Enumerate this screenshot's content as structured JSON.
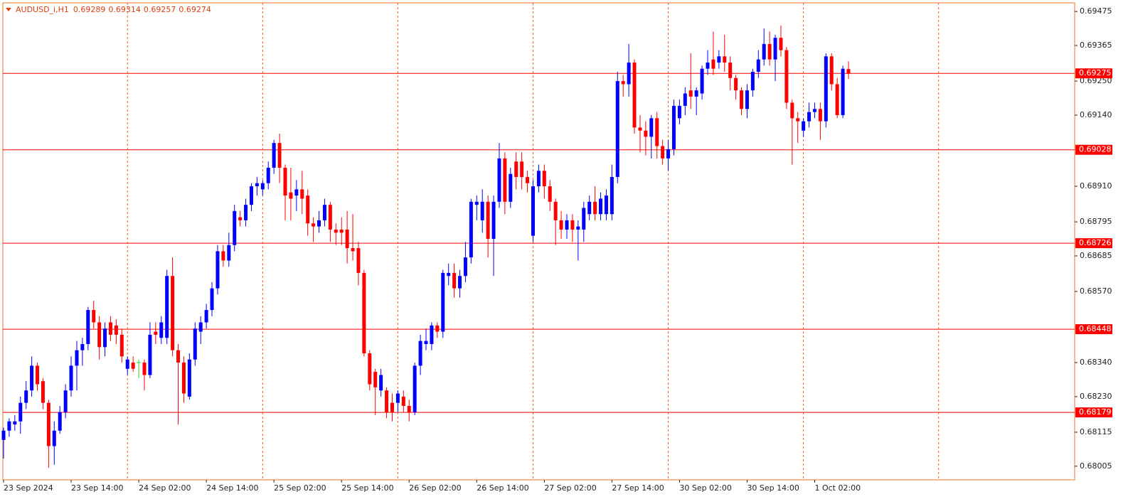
{
  "chart_data": {
    "type": "candlestick",
    "title": "AUDUSD_i,H1",
    "categories": [
      "23 Sep 2024",
      null,
      null,
      null,
      null,
      null,
      null,
      null,
      null,
      null,
      null,
      null,
      "23 Sep 14:00",
      null,
      null,
      null,
      null,
      null,
      null,
      null,
      null,
      null,
      null,
      null,
      "24 Sep 02:00",
      null,
      null,
      null,
      null,
      null,
      null,
      null,
      null,
      null,
      null,
      null,
      "24 Sep 14:00",
      null,
      null,
      null,
      null,
      null,
      null,
      null,
      null,
      null,
      null,
      null,
      "25 Sep 02:00",
      null,
      null,
      null,
      null,
      null,
      null,
      null,
      null,
      null,
      null,
      null,
      "25 Sep 14:00",
      null,
      null,
      null,
      null,
      null,
      null,
      null,
      null,
      null,
      null,
      null,
      "26 Sep 02:00",
      null,
      null,
      null,
      null,
      null,
      null,
      null,
      null,
      null,
      null,
      null,
      "26 Sep 14:00",
      null,
      null,
      null,
      null,
      null,
      null,
      null,
      null,
      null,
      null,
      null,
      "27 Sep 02:00",
      null,
      null,
      null,
      null,
      null,
      null,
      null,
      null,
      null,
      null,
      null,
      "27 Sep 14:00",
      null,
      null,
      null,
      null,
      null,
      null,
      null,
      null,
      null,
      null,
      null,
      "30 Sep 02:00",
      null,
      null,
      null,
      null,
      null,
      null,
      null,
      null,
      null,
      null,
      null,
      "30 Sep 14:00",
      null,
      null,
      null,
      null,
      null,
      null,
      null,
      null,
      null,
      null,
      null,
      "1 Oct 02:00",
      null,
      null,
      null,
      null,
      null,
      null
    ],
    "open": [
      0.6809,
      0.6812,
      0.6814,
      0.6815,
      0.6821,
      0.6825,
      0.6833,
      0.6828,
      0.6821,
      0.6807,
      0.6812,
      0.6818,
      0.6825,
      0.6833,
      0.6838,
      0.684,
      0.6851,
      0.6847,
      0.6839,
      0.6847,
      0.6846,
      0.6843,
      0.6832,
      0.6834,
      0.6834,
      0.6834,
      0.683,
      0.6844,
      0.6842,
      0.6842,
      0.6862,
      0.6838,
      0.6834,
      0.6823,
      0.6835,
      0.6844,
      0.6847,
      0.6851,
      0.6858,
      0.687,
      0.6867,
      0.6872,
      0.6881,
      0.688,
      0.6885,
      0.6891,
      0.689,
      0.6892,
      0.6897,
      0.6905,
      0.6897,
      0.6889,
      0.6888,
      0.689,
      0.6888,
      0.6879,
      0.6878,
      0.688,
      0.6885,
      0.6877,
      0.6877,
      0.6877,
      0.6871,
      0.6871,
      0.6863,
      0.6837,
      0.6831,
      0.6825,
      0.6825,
      0.6821,
      0.6821,
      0.6823,
      0.682,
      0.6818,
      0.6833,
      0.684,
      0.684,
      0.6846,
      0.6844,
      0.6862,
      0.6863,
      0.6858,
      0.6862,
      0.6868,
      0.6885,
      0.688,
      0.6886,
      0.6874,
      0.6886,
      0.69,
      0.6886,
      0.6899,
      0.6899,
      0.6894,
      0.6875,
      0.6891,
      0.6896,
      0.6891,
      0.6886,
      0.688,
      0.6877,
      0.688,
      0.6877,
      0.6877,
      0.6882,
      0.6886,
      0.6882,
      0.6882,
      0.6882,
      0.6894,
      0.6925,
      0.6924,
      0.6931,
      0.691,
      0.6909,
      0.6907,
      0.6913,
      0.6904,
      0.69,
      0.6903,
      0.6913,
      0.6917,
      0.6922,
      0.692,
      0.6921,
      0.6929,
      0.6932,
      0.6931,
      0.6933,
      0.6931,
      0.6926,
      0.6922,
      0.6916,
      0.6922,
      0.6928,
      0.6932,
      0.6937,
      0.6932,
      0.6939,
      0.6935,
      0.6918,
      0.6913,
      0.6909,
      0.6912,
      0.6915,
      0.6916,
      0.6912,
      0.6933,
      0.6924,
      0.6914,
      0.69289
    ],
    "high": [
      0.6813,
      0.6816,
      0.6817,
      0.6823,
      0.6828,
      0.6836,
      0.6834,
      0.6829,
      0.6822,
      0.6815,
      0.682,
      0.6827,
      0.6836,
      0.6841,
      0.6842,
      0.6852,
      0.6854,
      0.6849,
      0.6847,
      0.6849,
      0.6848,
      0.6845,
      0.6836,
      0.6836,
      0.6835,
      0.6835,
      0.6847,
      0.6847,
      0.6849,
      0.6864,
      0.6868,
      0.684,
      0.6836,
      0.6837,
      0.6847,
      0.6849,
      0.6853,
      0.686,
      0.6872,
      0.6872,
      0.6876,
      0.6885,
      0.6883,
      0.6887,
      0.6892,
      0.6894,
      0.6893,
      0.6899,
      0.6906,
      0.6908,
      0.6898,
      0.6897,
      0.6893,
      0.6896,
      0.689,
      0.6881,
      0.6883,
      0.6887,
      0.6886,
      0.6879,
      0.6881,
      0.6883,
      0.6882,
      0.6873,
      0.6864,
      0.6838,
      0.6832,
      0.6832,
      0.6826,
      0.6824,
      0.6825,
      0.6825,
      0.6822,
      0.6834,
      0.6843,
      0.6845,
      0.6847,
      0.6847,
      0.6864,
      0.6866,
      0.6866,
      0.6864,
      0.6873,
      0.6887,
      0.6888,
      0.689,
      0.6888,
      0.6888,
      0.6905,
      0.6902,
      0.6897,
      0.6902,
      0.6902,
      0.6896,
      0.6893,
      0.6898,
      0.6898,
      0.6893,
      0.6887,
      0.6883,
      0.6882,
      0.6882,
      0.688,
      0.6886,
      0.6888,
      0.6891,
      0.6889,
      0.689,
      0.6898,
      0.6928,
      0.6927,
      0.6937,
      0.6932,
      0.6914,
      0.6912,
      0.6914,
      0.6915,
      0.6906,
      0.6906,
      0.6919,
      0.6919,
      0.6923,
      0.6934,
      0.6923,
      0.693,
      0.6935,
      0.6941,
      0.6935,
      0.694,
      0.6933,
      0.6927,
      0.6923,
      0.6924,
      0.6929,
      0.6935,
      0.6942,
      0.6941,
      0.694,
      0.6943,
      0.6936,
      0.6919,
      0.6915,
      0.6913,
      0.6918,
      0.6918,
      0.6918,
      0.6934,
      0.6934,
      0.6926,
      0.693,
      0.69314
    ],
    "low": [
      0.6803,
      0.681,
      0.6812,
      0.6811,
      0.6819,
      0.6823,
      0.6825,
      0.6819,
      0.68,
      0.6801,
      0.6811,
      0.6816,
      0.6823,
      0.6825,
      0.6833,
      0.6838,
      0.6845,
      0.6835,
      0.6836,
      0.6841,
      0.684,
      0.6834,
      0.683,
      0.6831,
      0.6829,
      0.6825,
      0.6829,
      0.684,
      0.684,
      0.684,
      0.6836,
      0.6814,
      0.6821,
      0.6822,
      0.6833,
      0.684,
      0.6845,
      0.6849,
      0.6856,
      0.6865,
      0.6865,
      0.687,
      0.6878,
      0.6878,
      0.6883,
      0.6888,
      0.6888,
      0.689,
      0.6895,
      0.6892,
      0.688,
      0.688,
      0.6883,
      0.6882,
      0.6875,
      0.6873,
      0.6876,
      0.6878,
      0.6873,
      0.6872,
      0.6872,
      0.6866,
      0.6867,
      0.6859,
      0.6836,
      0.6825,
      0.6817,
      0.6823,
      0.6816,
      0.6815,
      0.6818,
      0.6818,
      0.6815,
      0.6817,
      0.683,
      0.6838,
      0.6838,
      0.6842,
      0.6842,
      0.6859,
      0.6855,
      0.6855,
      0.686,
      0.6866,
      0.688,
      0.6876,
      0.6868,
      0.6862,
      0.6884,
      0.6882,
      0.6884,
      0.689,
      0.689,
      0.6889,
      0.6873,
      0.6889,
      0.6887,
      0.6883,
      0.6872,
      0.6874,
      0.6874,
      0.6873,
      0.6867,
      0.6873,
      0.688,
      0.688,
      0.688,
      0.688,
      0.688,
      0.6892,
      0.692,
      0.692,
      0.6908,
      0.6902,
      0.6901,
      0.69,
      0.69,
      0.6898,
      0.6896,
      0.6901,
      0.6911,
      0.6914,
      0.6916,
      0.6914,
      0.6919,
      0.6927,
      0.6927,
      0.6929,
      0.6928,
      0.6922,
      0.6919,
      0.6914,
      0.6913,
      0.692,
      0.6926,
      0.693,
      0.693,
      0.6925,
      0.6933,
      0.6916,
      0.6898,
      0.6905,
      0.6907,
      0.691,
      0.6913,
      0.6906,
      0.691,
      0.6922,
      0.6913,
      0.6913,
      0.69257
    ],
    "close": [
      0.6812,
      0.6815,
      0.6815,
      0.6821,
      0.6825,
      0.6833,
      0.6827,
      0.6821,
      0.6807,
      0.6812,
      0.6818,
      0.6825,
      0.6833,
      0.6838,
      0.684,
      0.6851,
      0.6847,
      0.6839,
      0.6845,
      0.6843,
      0.6843,
      0.6836,
      0.6835,
      0.6832,
      0.6834,
      0.683,
      0.6843,
      0.6843,
      0.6847,
      0.6862,
      0.6838,
      0.6834,
      0.6824,
      0.6835,
      0.6845,
      0.6847,
      0.6851,
      0.6858,
      0.687,
      0.6867,
      0.6872,
      0.6883,
      0.688,
      0.6885,
      0.6891,
      0.6892,
      0.6892,
      0.6897,
      0.6905,
      0.6897,
      0.6888,
      0.6887,
      0.689,
      0.6887,
      0.6879,
      0.6878,
      0.688,
      0.6885,
      0.6877,
      0.6876,
      0.6876,
      0.6871,
      0.687,
      0.6863,
      0.6837,
      0.6827,
      0.6826,
      0.683,
      0.6818,
      0.6818,
      0.6824,
      0.682,
      0.6818,
      0.6833,
      0.6841,
      0.6841,
      0.6846,
      0.6844,
      0.6863,
      0.6863,
      0.6858,
      0.6862,
      0.6868,
      0.6886,
      0.6886,
      0.6886,
      0.6874,
      0.6886,
      0.69,
      0.6886,
      0.6895,
      0.6894,
      0.6894,
      0.6892,
      0.6891,
      0.6896,
      0.6891,
      0.6886,
      0.688,
      0.6877,
      0.688,
      0.6877,
      0.6878,
      0.6884,
      0.6886,
      0.6882,
      0.6887,
      0.6888,
      0.6894,
      0.6925,
      0.6924,
      0.6931,
      0.691,
      0.6909,
      0.6907,
      0.6913,
      0.6904,
      0.69,
      0.6903,
      0.6917,
      0.6917,
      0.6921,
      0.692,
      0.6922,
      0.6929,
      0.6931,
      0.6929,
      0.6933,
      0.6931,
      0.6926,
      0.6922,
      0.6916,
      0.6922,
      0.6928,
      0.6932,
      0.6937,
      0.6932,
      0.6939,
      0.6935,
      0.6918,
      0.6913,
      0.6912,
      0.6912,
      0.6915,
      0.6916,
      0.6912,
      0.6933,
      0.6924,
      0.6914,
      0.6929,
      0.69274
    ],
    "up_color": "#0000ff",
    "down_color": "#ff0000",
    "doji_color": "#32cd32",
    "ylim": [
      0.67961,
      0.69503
    ],
    "yticks": [
      0.69475,
      0.69365,
      {
        "value": 0.6925,
        "label": "0.69250"
      },
      {
        "value": 0.6914,
        "label": "0.69140"
      },
      {
        "value": 0.6891,
        "label": "0.68910"
      },
      0.68795,
      0.68685,
      {
        "value": 0.6857,
        "label": "0.68570"
      },
      {
        "value": 0.6834,
        "label": "0.68340"
      },
      {
        "value": 0.6823,
        "label": "0.68230"
      },
      0.68115,
      0.68005
    ],
    "levels": [
      0.69275,
      0.69028,
      0.68726,
      0.68448,
      0.68179
    ],
    "level_color": "#ff0000",
    "day_separators": [
      22,
      46,
      70,
      94,
      118,
      142,
      166
    ]
  }
}
